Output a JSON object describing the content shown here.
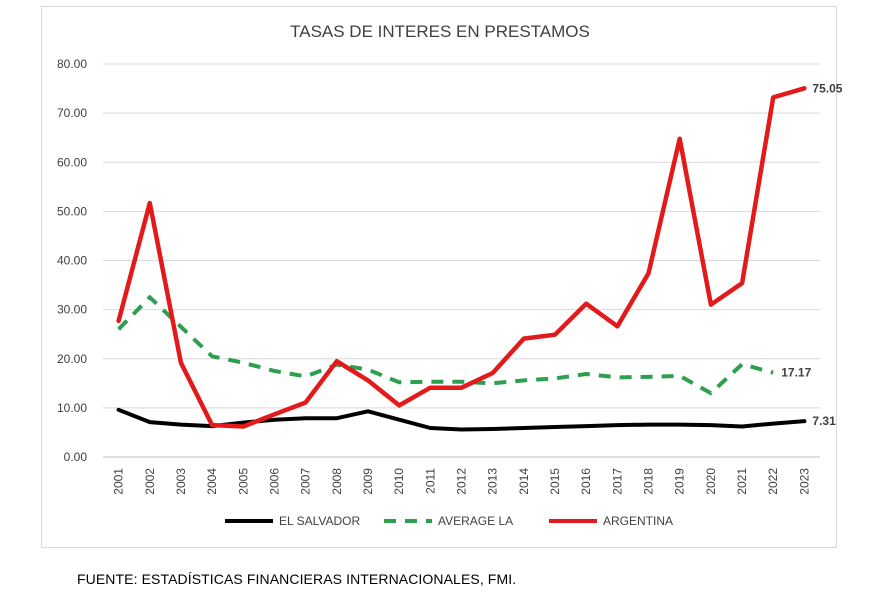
{
  "chart_data": {
    "type": "line",
    "title": "TASAS DE INTERES EN PRESTAMOS",
    "xlabel": "",
    "ylabel": "",
    "ylim": [
      0,
      80
    ],
    "yticks": [
      "0.00",
      "10.00",
      "20.00",
      "30.00",
      "40.00",
      "50.00",
      "60.00",
      "70.00",
      "80.00"
    ],
    "grid": true,
    "legend_position": "bottom",
    "categories": [
      "2001",
      "2002",
      "2003",
      "2004",
      "2005",
      "2006",
      "2007",
      "2008",
      "2009",
      "2010",
      "2011",
      "2012",
      "2013",
      "2014",
      "2015",
      "2016",
      "2017",
      "2018",
      "2019",
      "2020",
      "2021",
      "2022",
      "2023"
    ],
    "series": [
      {
        "name": "EL SALVADOR",
        "color": "#000000",
        "dash": "solid",
        "values": [
          9.6,
          7.1,
          6.6,
          6.3,
          7.0,
          7.6,
          7.9,
          7.9,
          9.3,
          7.6,
          5.9,
          5.6,
          5.7,
          5.9,
          6.1,
          6.3,
          6.5,
          6.6,
          6.6,
          6.5,
          6.2,
          6.8,
          7.31
        ],
        "end_label": "7.31"
      },
      {
        "name": "AVERAGE LA",
        "color": "#2e9e4f",
        "dash": "dashed",
        "values": [
          26.0,
          32.5,
          26.5,
          20.5,
          19.2,
          17.5,
          16.4,
          18.8,
          17.8,
          15.2,
          15.3,
          15.3,
          15.0,
          15.6,
          16.0,
          16.9,
          16.2,
          16.3,
          16.5,
          13.0,
          18.9,
          17.17,
          null
        ],
        "end_label": "17.17"
      },
      {
        "name": "ARGENTINA",
        "color": "#e31a1c",
        "dash": "solid",
        "values": [
          27.7,
          51.7,
          19.2,
          6.5,
          6.2,
          8.7,
          11.1,
          19.5,
          15.6,
          10.5,
          14.1,
          14.1,
          17.1,
          24.1,
          24.9,
          31.2,
          26.6,
          37.4,
          64.8,
          31.0,
          35.4,
          73.2,
          75.05
        ],
        "end_label": "75.05"
      }
    ]
  },
  "source_note": "FUENTE: ESTADÍSTICAS FINANCIERAS INTERNACIONALES, FMI."
}
